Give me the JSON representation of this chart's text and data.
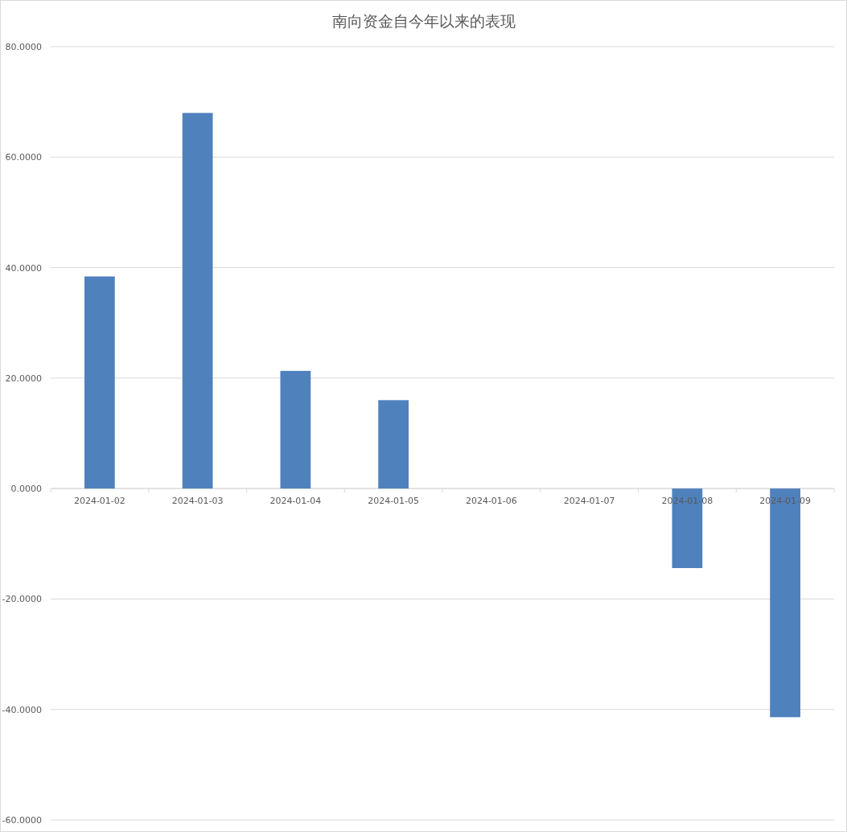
{
  "chart_data": {
    "type": "bar",
    "title": "南向资金自今年以来的表现",
    "categories": [
      "2024-01-02",
      "2024-01-03",
      "2024-01-04",
      "2024-01-05",
      "2024-01-06",
      "2024-01-07",
      "2024-01-08",
      "2024-01-09"
    ],
    "values": [
      38.4,
      68.0,
      21.3,
      16.0,
      null,
      null,
      -14.4,
      -41.4
    ],
    "color": "#4f81bd",
    "ylim": [
      -60,
      80
    ],
    "yticks": [
      {
        "value": -60,
        "label": "-60.0000"
      },
      {
        "value": -40,
        "label": "-40.0000"
      },
      {
        "value": -20,
        "label": "-20.0000"
      },
      {
        "value": 0,
        "label": "0.0000"
      },
      {
        "value": 20,
        "label": "20.0000"
      },
      {
        "value": 40,
        "label": "40.0000"
      },
      {
        "value": 60,
        "label": "60.0000"
      },
      {
        "value": 80,
        "label": "80.0000"
      }
    ],
    "grid": "y"
  }
}
